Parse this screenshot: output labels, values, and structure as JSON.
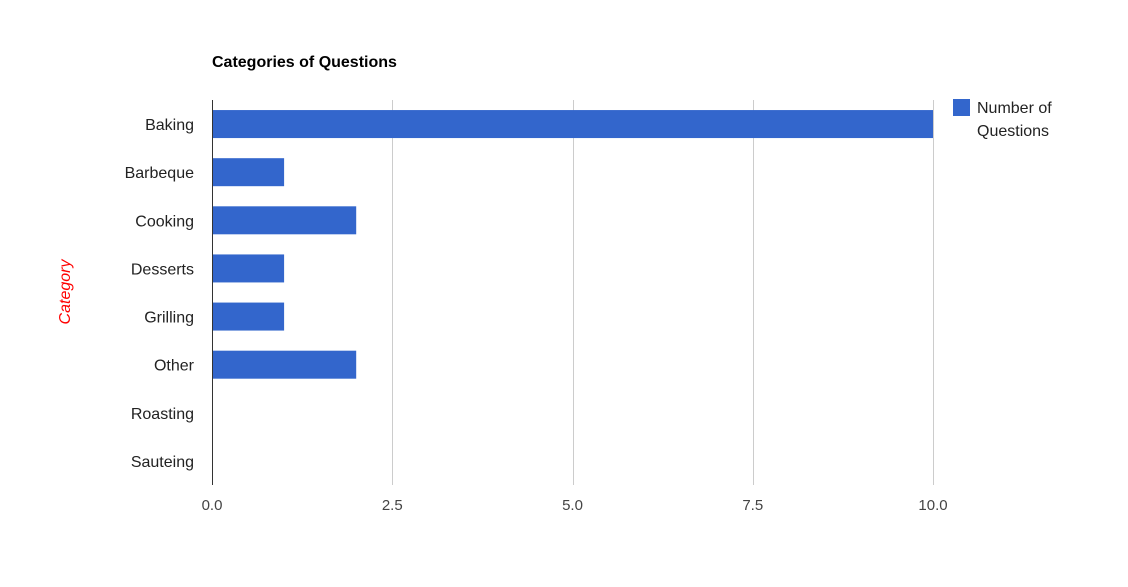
{
  "chart_data": {
    "type": "bar",
    "orientation": "horizontal",
    "title": "Categories of Questions",
    "ylabel": "Category",
    "ylabel_color": "#ff0000",
    "xlabel": "",
    "categories": [
      "Baking",
      "Barbeque",
      "Cooking",
      "Desserts",
      "Grilling",
      "Other",
      "Roasting",
      "Sauteing"
    ],
    "series": [
      {
        "name": "Number of Questions",
        "legend_lines": [
          "Number of",
          "Questions"
        ],
        "color": "#3366cc",
        "values": [
          10,
          1,
          2,
          1,
          1,
          2,
          0,
          0
        ]
      }
    ],
    "xlim": [
      0,
      10
    ],
    "xticks": [
      0,
      2.5,
      5,
      7.5,
      10
    ],
    "xtick_labels": [
      "0.0",
      "2.5",
      "5.0",
      "7.5",
      "10.0"
    ],
    "grid": true,
    "legend_position": "right"
  }
}
